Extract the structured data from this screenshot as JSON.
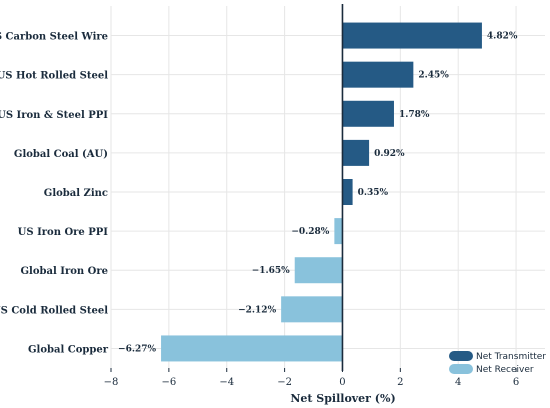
{
  "chart_data": {
    "type": "bar",
    "orientation": "horizontal",
    "categories": [
      "US Carbon Steel Wire",
      "US Hot Rolled Steel",
      "US Iron & Steel PPI",
      "Global Coal (AU)",
      "Global Zinc",
      "US Iron Ore PPI",
      "Global Iron Ore",
      "US Cold Rolled Steel",
      "Global Copper"
    ],
    "values": [
      4.82,
      2.45,
      1.78,
      0.92,
      0.35,
      -0.28,
      -1.65,
      -2.12,
      -6.27
    ],
    "value_labels": [
      "4.82%",
      "2.45%",
      "1.78%",
      "0.92%",
      "0.35%",
      "−0.28%",
      "−1.65%",
      "−2.12%",
      "−6.27%"
    ],
    "xlabel": "Net Spillover (%)",
    "ylabel": "",
    "xlim": [
      -8,
      7
    ],
    "xticks": [
      -8,
      -6,
      -4,
      -2,
      0,
      2,
      4,
      6
    ],
    "xtick_labels": [
      "−8",
      "−6",
      "−4",
      "−2",
      "0",
      "2",
      "4",
      "6"
    ],
    "grid": true,
    "legend": {
      "placement": "bottom-right",
      "entries": [
        {
          "label": "Net Transmitter",
          "color": "#255a85"
        },
        {
          "label": "Net Receiver",
          "color": "#89c2dc"
        }
      ]
    },
    "colors": {
      "positive": "#255a85",
      "negative": "#89c2dc",
      "zero_line": "#1a2b3c"
    }
  }
}
